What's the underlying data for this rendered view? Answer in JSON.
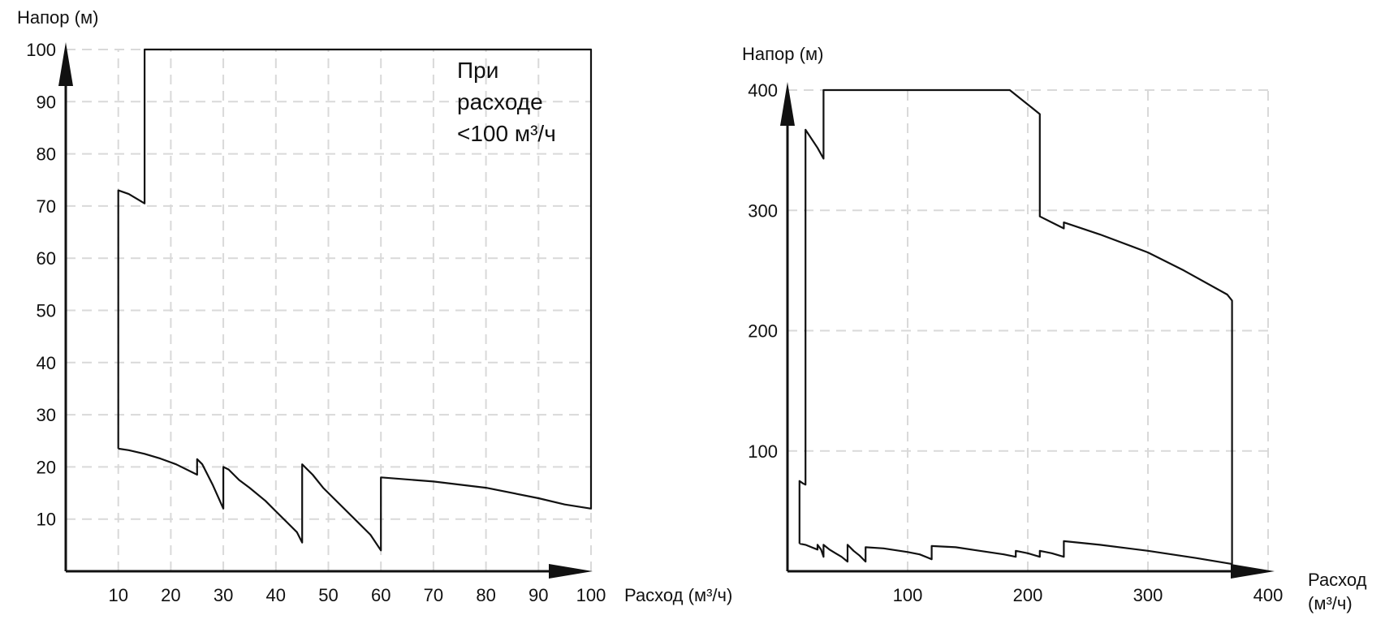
{
  "chart_data": [
    {
      "type": "line",
      "ylabel": "Напор (м)",
      "xlabel": "Расход (м³/ч)",
      "annotation": [
        "При",
        "расходе",
        "<100 м³/ч"
      ],
      "xlim": [
        0,
        100
      ],
      "ylim": [
        0,
        100
      ],
      "x_ticks": [
        "10",
        "20",
        "30",
        "40",
        "50",
        "60",
        "70",
        "80",
        "90",
        "100"
      ],
      "y_ticks": [
        "10",
        "20",
        "30",
        "40",
        "50",
        "60",
        "70",
        "80",
        "90",
        "100"
      ],
      "grid": true,
      "outline": [
        [
          10,
          23.5
        ],
        [
          12,
          23.2
        ],
        [
          15,
          22.5
        ],
        [
          18,
          21.6
        ],
        [
          21,
          20.5
        ],
        [
          25,
          18.5
        ],
        [
          25,
          21.5
        ],
        [
          26,
          20.5
        ],
        [
          28,
          16.5
        ],
        [
          30,
          12
        ],
        [
          30,
          20
        ],
        [
          31,
          19.5
        ],
        [
          33,
          17.5
        ],
        [
          35,
          16
        ],
        [
          38,
          13.5
        ],
        [
          40,
          11.5
        ],
        [
          42,
          9.5
        ],
        [
          44,
          7.5
        ],
        [
          45,
          5.5
        ],
        [
          45,
          20.5
        ],
        [
          47,
          18.5
        ],
        [
          49,
          16
        ],
        [
          52,
          13
        ],
        [
          55,
          10
        ],
        [
          58,
          7
        ],
        [
          60,
          4
        ],
        [
          60,
          18
        ],
        [
          70,
          17.2
        ],
        [
          80,
          16
        ],
        [
          90,
          14
        ],
        [
          95,
          12.8
        ],
        [
          100,
          12
        ],
        [
          100,
          100
        ],
        [
          15,
          100
        ],
        [
          15,
          70.5
        ],
        [
          12,
          72.3
        ],
        [
          10,
          73
        ],
        [
          10,
          23.5
        ]
      ]
    },
    {
      "type": "line",
      "ylabel": "Напор (м)",
      "xlabel": "Расход (м³/ч)",
      "xlim": [
        0,
        400
      ],
      "ylim": [
        0,
        400
      ],
      "x_ticks": [
        "100",
        "200",
        "300",
        "400"
      ],
      "y_ticks": [
        "100",
        "200",
        "300",
        "400"
      ],
      "grid": true,
      "outline": [
        [
          10,
          23
        ],
        [
          15,
          22
        ],
        [
          20,
          20
        ],
        [
          25,
          18
        ],
        [
          25,
          22
        ],
        [
          28,
          18
        ],
        [
          30,
          12
        ],
        [
          30,
          22
        ],
        [
          35,
          18
        ],
        [
          40,
          15
        ],
        [
          45,
          12
        ],
        [
          50,
          8
        ],
        [
          50,
          22
        ],
        [
          55,
          17
        ],
        [
          60,
          13
        ],
        [
          65,
          8
        ],
        [
          65,
          20
        ],
        [
          80,
          19
        ],
        [
          100,
          16
        ],
        [
          110,
          14
        ],
        [
          120,
          10
        ],
        [
          120,
          21
        ],
        [
          140,
          20
        ],
        [
          160,
          17
        ],
        [
          180,
          14
        ],
        [
          190,
          12
        ],
        [
          190,
          17
        ],
        [
          200,
          15
        ],
        [
          210,
          12
        ],
        [
          210,
          17
        ],
        [
          220,
          15
        ],
        [
          230,
          12
        ],
        [
          230,
          25
        ],
        [
          260,
          22
        ],
        [
          300,
          17
        ],
        [
          340,
          11
        ],
        [
          370,
          6
        ],
        [
          370,
          225
        ],
        [
          366,
          230
        ],
        [
          330,
          250
        ],
        [
          300,
          265
        ],
        [
          260,
          280
        ],
        [
          230,
          290
        ],
        [
          230,
          285
        ],
        [
          220,
          290
        ],
        [
          210,
          295
        ],
        [
          210,
          380
        ],
        [
          185,
          400
        ],
        [
          30,
          400
        ],
        [
          30,
          343
        ],
        [
          25,
          352
        ],
        [
          15,
          367
        ],
        [
          15,
          72
        ],
        [
          13,
          73
        ],
        [
          10,
          75
        ],
        [
          10,
          23
        ]
      ]
    }
  ]
}
